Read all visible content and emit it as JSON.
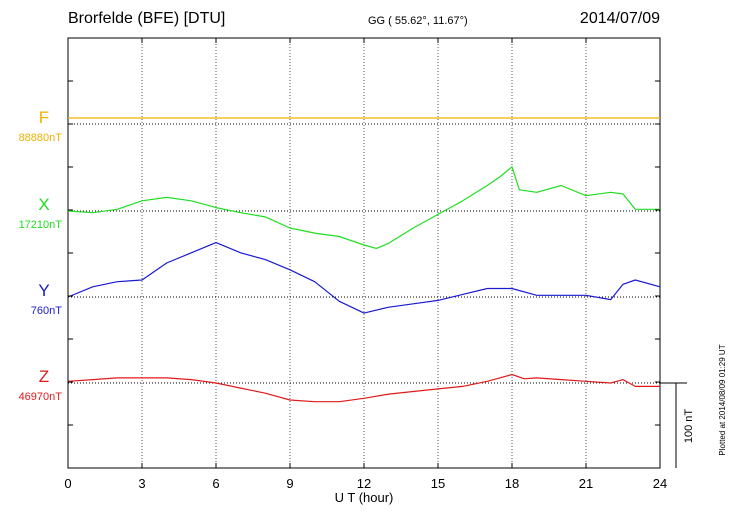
{
  "header": {
    "station": "Brorfelde (BFE)  [DTU]",
    "coords": "GG ( 55.62°,  11.67°)",
    "date": "2014/07/09"
  },
  "footer": {
    "plotted": "Plotted at 2014/08/09 01:29 UT"
  },
  "chart_data": {
    "type": "line",
    "xlabel": "U T (hour)",
    "xlim": [
      0,
      24
    ],
    "xticks": [
      "0",
      "3",
      "6",
      "9",
      "12",
      "15",
      "18",
      "21",
      "24"
    ],
    "grid": true,
    "scale_bar": {
      "label": "100 nT",
      "nT": 100
    },
    "colors": {
      "F": "#f0b000",
      "X": "#22dd22",
      "Y": "#1a1ad0",
      "Z": "#e01a1a"
    },
    "series": [
      {
        "name": "F",
        "baseline_label": "88880nT",
        "x": [
          0,
          24
        ],
        "values": [
          88887,
          88887
        ]
      },
      {
        "name": "X",
        "baseline_label": "17210nT",
        "x": [
          0,
          1,
          2,
          3,
          4,
          5,
          6,
          7,
          8,
          9,
          10,
          11,
          12,
          12.5,
          13,
          14,
          15,
          16,
          17,
          17.5,
          18,
          18.3,
          19,
          20,
          21,
          22,
          22.5,
          23,
          24
        ],
        "values": [
          17210,
          17208,
          17212,
          17222,
          17226,
          17222,
          17214,
          17208,
          17203,
          17190,
          17184,
          17180,
          17170,
          17166,
          17172,
          17190,
          17206,
          17222,
          17240,
          17250,
          17262,
          17235,
          17232,
          17240,
          17228,
          17232,
          17230,
          17212,
          17212
        ]
      },
      {
        "name": "Y",
        "baseline_label": "760nT",
        "x": [
          0,
          1,
          2,
          3,
          4,
          5,
          6,
          7,
          8,
          9,
          10,
          11,
          12,
          13,
          14,
          15,
          16,
          17,
          18,
          19,
          20,
          21,
          22,
          22.5,
          23,
          24
        ],
        "values": [
          760,
          772,
          778,
          780,
          800,
          812,
          824,
          812,
          804,
          792,
          778,
          755,
          741,
          748,
          752,
          756,
          763,
          770,
          770,
          762,
          762,
          762,
          757,
          775,
          780,
          772
        ]
      },
      {
        "name": "Z",
        "baseline_label": "46970nT",
        "x": [
          0,
          1,
          2,
          3,
          4,
          5,
          6,
          7,
          8,
          9,
          10,
          11,
          12,
          13,
          14,
          15,
          16,
          17,
          18,
          18.5,
          19,
          20,
          21,
          22,
          22.5,
          23,
          24
        ],
        "values": [
          46972,
          46974,
          46976,
          46976,
          46976,
          46974,
          46970,
          46964,
          46958,
          46950,
          46948,
          46948,
          46952,
          46957,
          46960,
          46963,
          46966,
          46972,
          46980,
          46975,
          46976,
          46974,
          46972,
          46970,
          46974,
          46966,
          46966
        ]
      }
    ]
  }
}
